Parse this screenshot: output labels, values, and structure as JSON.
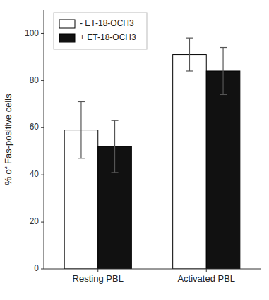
{
  "chart_data": {
    "type": "bar",
    "categories": [
      "Resting PBL",
      "Activated PBL"
    ],
    "series": [
      {
        "name": "- ET-18-OCH3",
        "color": "#ffffff",
        "values": [
          59,
          91
        ],
        "errors": [
          12,
          7
        ]
      },
      {
        "name": "+ ET-18-OCH3",
        "color": "#111111",
        "values": [
          52,
          84
        ],
        "errors": [
          11,
          10
        ]
      }
    ],
    "y_label": "% of Fas-positive cells",
    "ylim": [
      0,
      110
    ],
    "yticks": [
      0,
      20,
      40,
      60,
      80,
      100
    ],
    "grid": false,
    "legend": "upper left"
  }
}
